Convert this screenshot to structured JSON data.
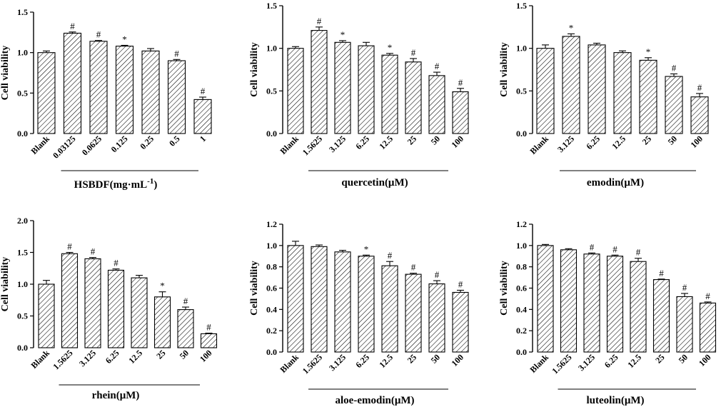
{
  "figure_title": "Cell viability panels",
  "colors": {
    "ink": "#000000",
    "fill": "#ffffff"
  },
  "chart_data": [
    {
      "type": "bar",
      "title": "",
      "xlabel": "HSBDF(mg·mL-1)",
      "xlabel_main": "HSBDF(mg",
      "xlabel_dot": "·",
      "xlabel_unit": "mL",
      "xlabel_sup": "-1",
      "xlabel_close": ")",
      "ylabel": "Cell viability",
      "ylim": [
        0,
        1.5
      ],
      "yticks": [
        0,
        0.5,
        1.0,
        1.5
      ],
      "ytick_labels": [
        "0.0",
        "0.5",
        "1.0",
        "1.5"
      ],
      "categories": [
        "Blank",
        "0.03125",
        "0.0625",
        "0.125",
        "0.25",
        "0.5",
        "1"
      ],
      "values": [
        1.0,
        1.24,
        1.14,
        1.08,
        1.02,
        0.9,
        0.42
      ],
      "errors": [
        0.02,
        0.015,
        0.01,
        0.01,
        0.03,
        0.015,
        0.03
      ],
      "significance": [
        "",
        "#",
        "#",
        "*",
        "",
        "#",
        "#"
      ]
    },
    {
      "type": "bar",
      "title": "",
      "xlabel": "quercetin(μM)",
      "ylabel": "Cell viability",
      "ylim": [
        0,
        1.5
      ],
      "yticks": [
        0,
        0.5,
        1.0,
        1.5
      ],
      "ytick_labels": [
        "0.0",
        "0.5",
        "1.0",
        "1.5"
      ],
      "categories": [
        "Blank",
        "1.5625",
        "3.125",
        "6.25",
        "12.5",
        "25",
        "50",
        "100"
      ],
      "values": [
        1.0,
        1.21,
        1.07,
        1.03,
        0.92,
        0.84,
        0.68,
        0.49
      ],
      "errors": [
        0.02,
        0.04,
        0.02,
        0.04,
        0.02,
        0.04,
        0.04,
        0.04
      ],
      "significance": [
        "",
        "#",
        "*",
        "",
        "*",
        "#",
        "#",
        "#"
      ]
    },
    {
      "type": "bar",
      "title": "",
      "xlabel": "emodin(μM)",
      "ylabel": "Cell viability",
      "ylim": [
        0,
        1.5
      ],
      "yticks": [
        0,
        0.5,
        1.0,
        1.5
      ],
      "ytick_labels": [
        "0.0",
        "0.5",
        "1.0",
        "1.5"
      ],
      "categories": [
        "Blank",
        "3.125",
        "6.25",
        "12.5",
        "25",
        "50",
        "100"
      ],
      "values": [
        1.0,
        1.14,
        1.04,
        0.95,
        0.86,
        0.67,
        0.43
      ],
      "errors": [
        0.04,
        0.03,
        0.02,
        0.02,
        0.03,
        0.03,
        0.04
      ],
      "significance": [
        "",
        "*",
        "",
        "",
        "*",
        "#",
        "#"
      ]
    },
    {
      "type": "bar",
      "title": "",
      "xlabel": "rhein(μM)",
      "ylabel": "Cell viability",
      "ylim": [
        0,
        2.0
      ],
      "yticks": [
        0,
        0.5,
        1.0,
        1.5,
        2.0
      ],
      "ytick_labels": [
        "0.0",
        "0.5",
        "1.0",
        "1.5",
        "2.0"
      ],
      "categories": [
        "Blank",
        "1.5625",
        "3.125",
        "6.25",
        "12.5",
        "25",
        "50",
        "100"
      ],
      "values": [
        1.0,
        1.48,
        1.4,
        1.22,
        1.1,
        0.8,
        0.6,
        0.22
      ],
      "errors": [
        0.06,
        0.02,
        0.02,
        0.02,
        0.04,
        0.08,
        0.04,
        0.01
      ],
      "significance": [
        "",
        "#",
        "#",
        "#",
        "",
        "*",
        "#",
        "#"
      ]
    },
    {
      "type": "bar",
      "title": "",
      "xlabel": "aloe-emodin(μM)",
      "ylabel": "Cell viability",
      "ylim": [
        0,
        1.2
      ],
      "yticks": [
        0,
        0.2,
        0.4,
        0.6,
        0.8,
        1.0,
        1.2
      ],
      "ytick_labels": [
        "0.0",
        "0.2",
        "0.4",
        "0.6",
        "0.8",
        "1.0",
        "1.2"
      ],
      "categories": [
        "Blank",
        "1.5625",
        "3.125",
        "6.25",
        "12.5",
        "25",
        "50",
        "100"
      ],
      "values": [
        1.0,
        0.99,
        0.94,
        0.9,
        0.81,
        0.73,
        0.64,
        0.56
      ],
      "errors": [
        0.04,
        0.015,
        0.015,
        0.01,
        0.04,
        0.01,
        0.03,
        0.02
      ],
      "significance": [
        "",
        "",
        "",
        "*",
        "#",
        "#",
        "#",
        "#"
      ]
    },
    {
      "type": "bar",
      "title": "",
      "xlabel": "luteolin(μM)",
      "ylabel": "Cell viability",
      "ylim": [
        0,
        1.2
      ],
      "yticks": [
        0,
        0.2,
        0.4,
        0.6,
        0.8,
        1.0,
        1.2
      ],
      "ytick_labels": [
        "0.0",
        "0.2",
        "0.4",
        "0.6",
        "0.8",
        "1.0",
        "1.2"
      ],
      "categories": [
        "Blank",
        "1.5625",
        "3.125",
        "6.25",
        "12.5",
        "25",
        "50",
        "100"
      ],
      "values": [
        1.0,
        0.96,
        0.92,
        0.9,
        0.85,
        0.68,
        0.52,
        0.46
      ],
      "errors": [
        0.01,
        0.01,
        0.01,
        0.01,
        0.03,
        0.005,
        0.03,
        0.01
      ],
      "significance": [
        "",
        "",
        "#",
        "#",
        "#",
        "#",
        "#",
        "#"
      ]
    }
  ]
}
